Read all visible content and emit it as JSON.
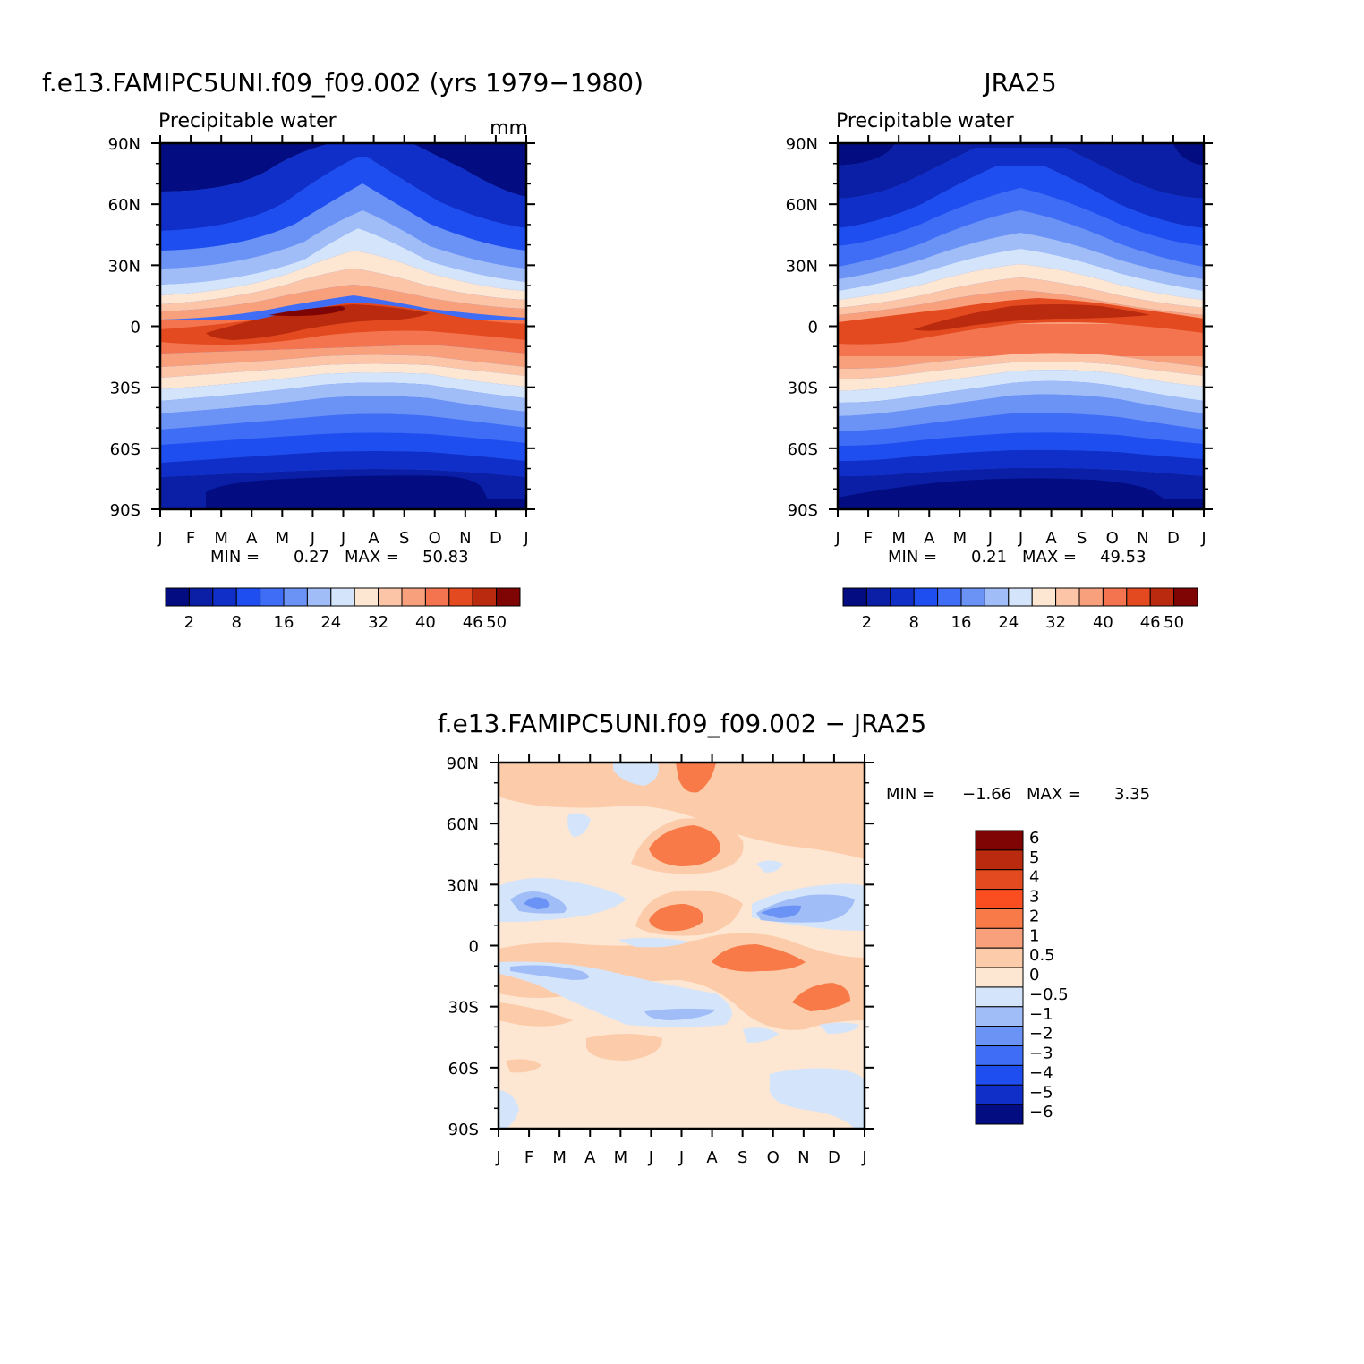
{
  "panels": [
    {
      "id": "model",
      "title": "f.e13.FAMIPC5UNI.f09_f09.002 (yrs 1979−1980)",
      "subtitle_left": "Precipitable water",
      "subtitle_right": "mm",
      "stats": {
        "min_label": "MIN =",
        "min_value": "0.27",
        "max_label": "MAX =",
        "max_value": "50.83"
      }
    },
    {
      "id": "obs",
      "title": "JRA25",
      "subtitle_left": "Precipitable water",
      "subtitle_right": "",
      "stats": {
        "min_label": "MIN =",
        "min_value": "0.21",
        "max_label": "MAX =",
        "max_value": "49.53"
      }
    },
    {
      "id": "diff",
      "title": "f.e13.FAMIPC5UNI.f09_f09.002 − JRA25",
      "subtitle_left": "",
      "subtitle_right": "",
      "stats": {
        "min_label": "MIN =",
        "min_value": "−1.66",
        "max_label": "MAX =",
        "max_value": "3.35"
      }
    }
  ],
  "chart_data": [
    {
      "type": "heatmap",
      "panel": "model",
      "title": "f.e13.FAMIPC5UNI.f09_f09.002 (yrs 1979−1980)",
      "variable": "Precipitable water",
      "units": "mm",
      "x_tick_labels": [
        "J",
        "F",
        "M",
        "A",
        "M",
        "J",
        "J",
        "A",
        "S",
        "O",
        "N",
        "D",
        "J"
      ],
      "y_tick_labels": [
        "90N",
        "60N",
        "30N",
        "0",
        "30S",
        "60S",
        "90S"
      ],
      "ylim": [
        -90,
        90
      ],
      "contour_levels": [
        2,
        4,
        8,
        12,
        16,
        20,
        24,
        28,
        32,
        36,
        40,
        44,
        46,
        48,
        50
      ],
      "colorbar_labels": [
        "2",
        "8",
        "16",
        "24",
        "32",
        "40",
        "46",
        "50"
      ],
      "min": 0.27,
      "max": 50.83
    },
    {
      "type": "heatmap",
      "panel": "obs",
      "title": "JRA25",
      "variable": "Precipitable water",
      "x_tick_labels": [
        "J",
        "F",
        "M",
        "A",
        "M",
        "J",
        "J",
        "A",
        "S",
        "O",
        "N",
        "D",
        "J"
      ],
      "y_tick_labels": [
        "90N",
        "60N",
        "30N",
        "0",
        "30S",
        "60S",
        "90S"
      ],
      "ylim": [
        -90,
        90
      ],
      "contour_levels": [
        2,
        4,
        8,
        12,
        16,
        20,
        24,
        28,
        32,
        36,
        40,
        44,
        46,
        48,
        50
      ],
      "colorbar_labels": [
        "2",
        "8",
        "16",
        "24",
        "32",
        "40",
        "46",
        "50"
      ],
      "min": 0.21,
      "max": 49.53
    },
    {
      "type": "heatmap",
      "panel": "diff",
      "title": "f.e13.FAMIPC5UNI.f09_f09.002 − JRA25",
      "x_tick_labels": [
        "J",
        "F",
        "M",
        "A",
        "M",
        "J",
        "J",
        "A",
        "S",
        "O",
        "N",
        "D",
        "J"
      ],
      "y_tick_labels": [
        "90N",
        "60N",
        "30N",
        "0",
        "30S",
        "60S",
        "90S"
      ],
      "ylim": [
        -90,
        90
      ],
      "contour_levels": [
        -6,
        -5,
        -4,
        -3,
        -2,
        -1,
        -0.5,
        0,
        0.5,
        1,
        2,
        3,
        4,
        5,
        6
      ],
      "colorbar_labels": [
        "6",
        "5",
        "4",
        "3",
        "2",
        "1",
        "0.5",
        "0",
        "−0.5",
        "−1",
        "−2",
        "−3",
        "−4",
        "−5",
        "−6"
      ],
      "min": -1.66,
      "max": 3.35
    }
  ],
  "colors": {
    "abs_scale": [
      "#030c80",
      "#0a1fa6",
      "#0f2fc8",
      "#1e4ef0",
      "#3f6df5",
      "#6b93f6",
      "#a0bdf8",
      "#d4e5fb",
      "#fde6d2",
      "#fcc5a8",
      "#f8a07c",
      "#f3744e",
      "#e44a20",
      "#b92a0e",
      "#7f0505"
    ],
    "diff_scale": [
      "#7f0505",
      "#b92a0e",
      "#e44a20",
      "#fb4e20",
      "#f77a48",
      "#f8a07c",
      "#fccbaa",
      "#fde6d2",
      "#d4e5fb",
      "#a0bdf8",
      "#6b93f6",
      "#3f6df5",
      "#1e4ef0",
      "#0f2fc8",
      "#030c80"
    ]
  }
}
